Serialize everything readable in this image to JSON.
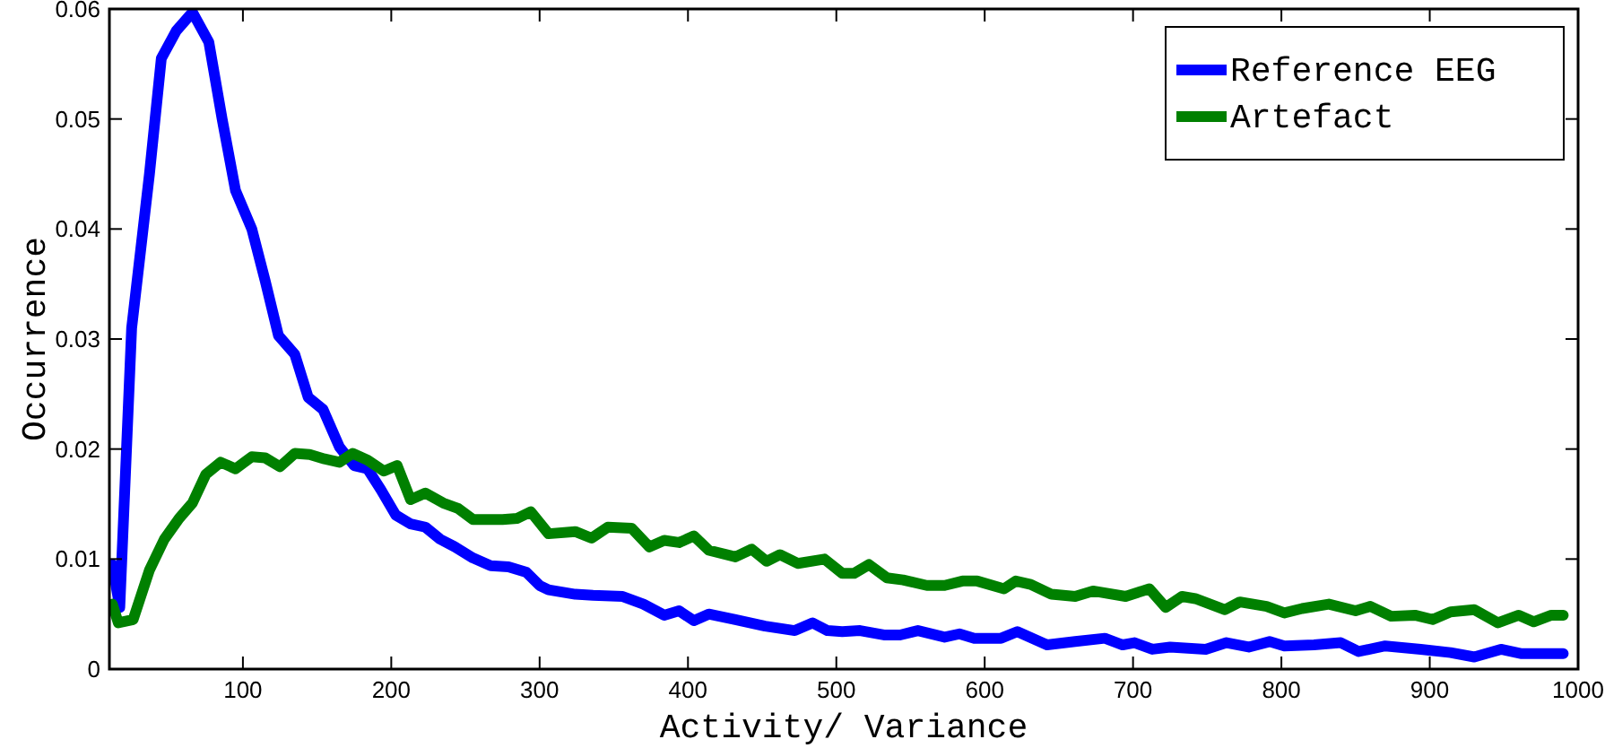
{
  "chart_data": {
    "type": "line",
    "xlabel": "Activity/ Variance",
    "ylabel": "Occurrence",
    "xlim": [
      10,
      1000
    ],
    "ylim": [
      0,
      0.06
    ],
    "xticks": [
      100,
      200,
      300,
      400,
      500,
      600,
      700,
      800,
      900,
      1000
    ],
    "yticks": [
      0,
      0.01,
      0.02,
      0.03,
      0.04,
      0.05,
      0.06
    ],
    "legend": "top right",
    "grid": false,
    "line_style": "solid",
    "series": [
      {
        "name": "Reference EEG",
        "color": "#0000ff",
        "x": [
          12,
          17,
          25,
          37,
          45,
          55,
          66,
          77,
          86,
          95,
          106,
          115,
          124,
          135,
          144,
          154,
          165,
          175,
          184,
          193,
          203,
          213,
          223,
          233,
          243,
          255,
          267,
          279,
          291,
          300,
          306,
          324,
          336,
          356,
          370,
          384,
          394,
          404,
          414,
          432,
          452,
          472,
          484,
          494,
          504,
          516,
          532,
          543,
          555,
          573,
          583,
          593,
          611,
          622,
          642,
          661,
          681,
          693,
          701,
          713,
          725,
          749,
          763,
          778,
          792,
          802,
          822,
          840,
          852,
          870,
          894,
          914,
          930,
          948,
          962,
          990
        ],
        "values": [
          0.0095,
          0.0056,
          0.031,
          0.045,
          0.0555,
          0.058,
          0.0597,
          0.057,
          0.05,
          0.0435,
          0.04,
          0.0353,
          0.0303,
          0.0286,
          0.0247,
          0.0236,
          0.0202,
          0.0185,
          0.0182,
          0.0163,
          0.014,
          0.0132,
          0.0129,
          0.0118,
          0.0111,
          0.0101,
          0.0094,
          0.0093,
          0.0088,
          0.0076,
          0.0072,
          0.0068,
          0.0067,
          0.0066,
          0.0059,
          0.0049,
          0.0053,
          0.0044,
          0.005,
          0.0045,
          0.0039,
          0.0035,
          0.0042,
          0.0035,
          0.0034,
          0.0035,
          0.0031,
          0.0031,
          0.0035,
          0.0029,
          0.0032,
          0.0028,
          0.0028,
          0.0034,
          0.0022,
          0.0025,
          0.0028,
          0.0022,
          0.0024,
          0.0018,
          0.002,
          0.0018,
          0.0024,
          0.002,
          0.0025,
          0.0021,
          0.0022,
          0.0024,
          0.0016,
          0.0021,
          0.0018,
          0.0015,
          0.0011,
          0.0018,
          0.0014,
          0.0014
        ]
      },
      {
        "name": "Artefact",
        "color": "#008000",
        "x": [
          12,
          16,
          26,
          37,
          47,
          57,
          66,
          75,
          85,
          95,
          106,
          115,
          125,
          135,
          145,
          155,
          165,
          174,
          184,
          195,
          204,
          213,
          223,
          235,
          245,
          255,
          275,
          285,
          294,
          306,
          324,
          335,
          346,
          362,
          374,
          384,
          394,
          404,
          414,
          432,
          443,
          453,
          462,
          474,
          492,
          504,
          512,
          522,
          534,
          545,
          561,
          573,
          585,
          595,
          613,
          621,
          631,
          645,
          661,
          673,
          695,
          711,
          722,
          733,
          742,
          762,
          772,
          790,
          802,
          814,
          832,
          850,
          860,
          874,
          890,
          902,
          914,
          930,
          946,
          960,
          970,
          982,
          990
        ],
        "values": [
          0.0059,
          0.0042,
          0.0045,
          0.009,
          0.0118,
          0.0137,
          0.0151,
          0.0177,
          0.0188,
          0.0182,
          0.0193,
          0.0192,
          0.0184,
          0.0196,
          0.0195,
          0.0191,
          0.0188,
          0.0196,
          0.019,
          0.018,
          0.0185,
          0.0154,
          0.016,
          0.0151,
          0.0146,
          0.0136,
          0.0136,
          0.0137,
          0.0143,
          0.0123,
          0.0125,
          0.0119,
          0.0129,
          0.0128,
          0.0111,
          0.0117,
          0.0115,
          0.0121,
          0.0108,
          0.0102,
          0.0109,
          0.0098,
          0.0104,
          0.0096,
          0.01,
          0.0087,
          0.0087,
          0.0095,
          0.0083,
          0.0081,
          0.0076,
          0.0076,
          0.008,
          0.008,
          0.0073,
          0.008,
          0.0077,
          0.0068,
          0.0066,
          0.0071,
          0.0066,
          0.0073,
          0.0056,
          0.0066,
          0.0064,
          0.0054,
          0.0061,
          0.0057,
          0.0051,
          0.0055,
          0.0059,
          0.0053,
          0.0057,
          0.0048,
          0.0049,
          0.0045,
          0.0052,
          0.0054,
          0.0042,
          0.0049,
          0.0043,
          0.0049,
          0.0049
        ]
      }
    ]
  }
}
